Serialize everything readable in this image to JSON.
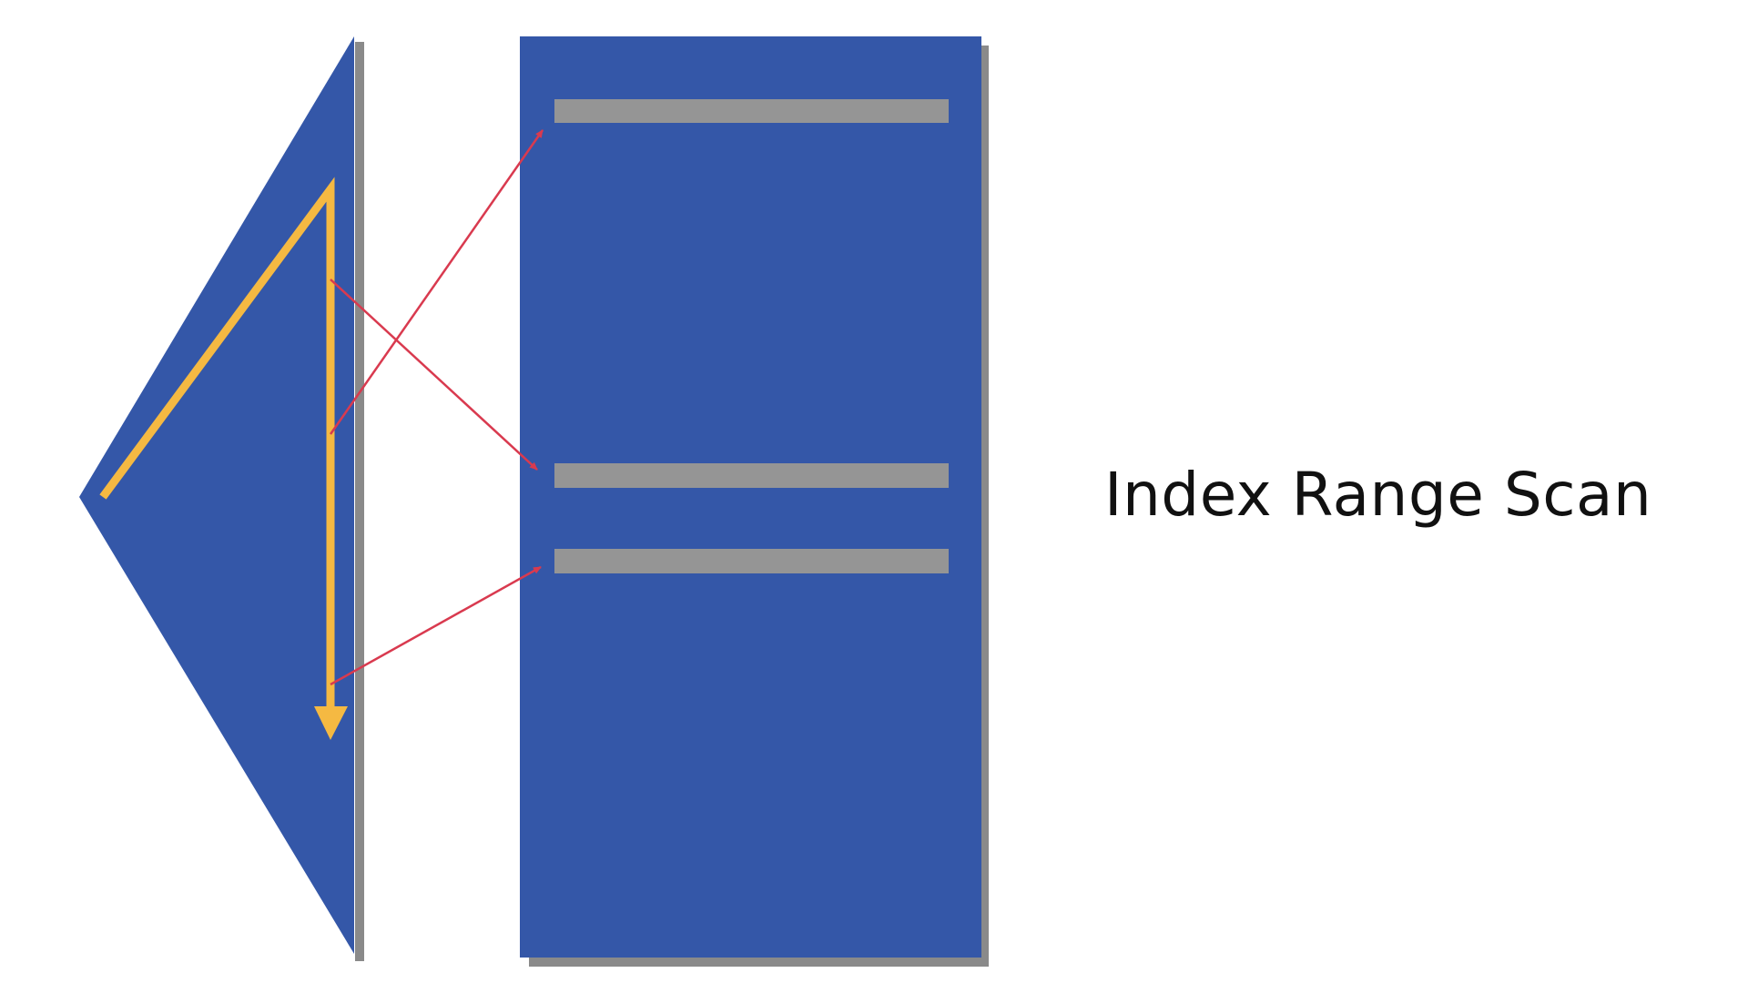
{
  "diagram": {
    "caption": "Index Range Scan",
    "colors": {
      "structure": "#3457a8",
      "shadow": "#8a8a8a",
      "row": "#959595",
      "scan_path": "#f5b942",
      "pointer": "#d93a4f",
      "background": "#ffffff",
      "text": "#111111"
    },
    "index_tree": {
      "icon": "triangle-index-shape"
    },
    "table": {
      "rows_highlighted": 3,
      "row_labels": [
        "row-1",
        "row-2",
        "row-3"
      ]
    },
    "pointers": [
      "pointer-to-row-2",
      "pointer-to-row-1",
      "pointer-to-row-3"
    ]
  }
}
